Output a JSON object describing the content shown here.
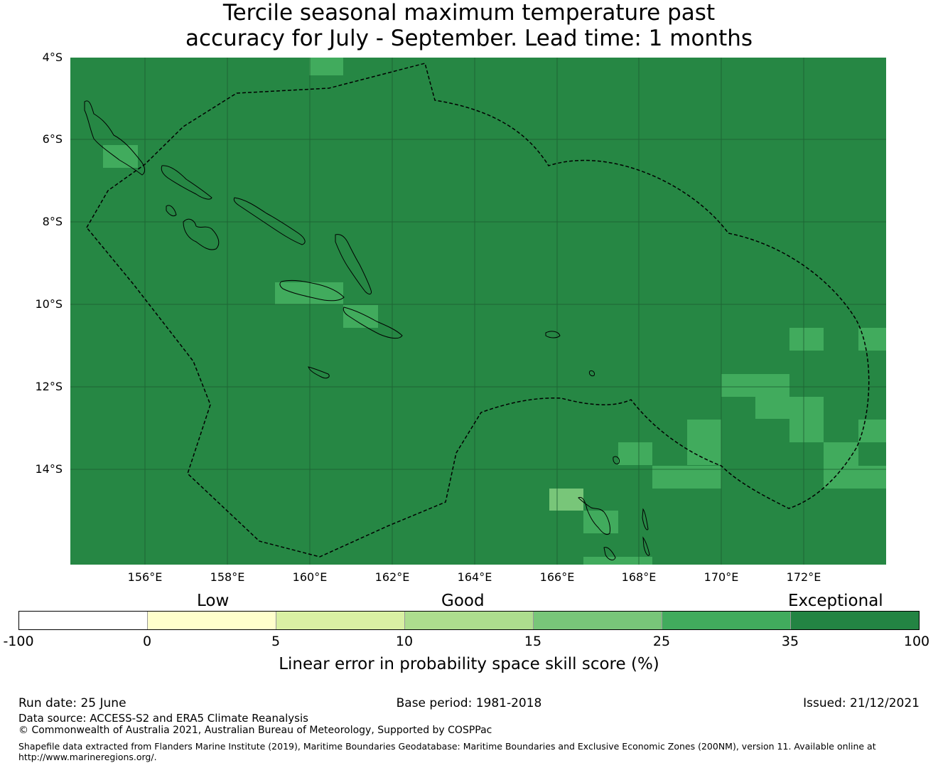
{
  "title": {
    "line1": "Tercile seasonal maximum temperature past",
    "line2": "accuracy for July - September. Lead time: 1 months"
  },
  "map": {
    "base_color": "#268744",
    "grid_color": "#1b5e31",
    "latitude_labels": [
      "4°S",
      "6°S",
      "8°S",
      "10°S",
      "12°S",
      "14°S"
    ],
    "longitude_labels": [
      "156°E",
      "158°E",
      "160°E",
      "162°E",
      "164°E",
      "166°E",
      "168°E",
      "170°E",
      "172°E"
    ]
  },
  "legend": {
    "categories": [
      "Low",
      "Good",
      "Exceptional"
    ],
    "colors": [
      "#ffffff",
      "#ffffcc",
      "#d9f0a3",
      "#addd8e",
      "#78c679",
      "#41ab5d",
      "#238443"
    ],
    "ticks": [
      "-100",
      "0",
      "5",
      "10",
      "15",
      "25",
      "35",
      "100"
    ],
    "title": "Linear error in probability space skill score (%)"
  },
  "footer": {
    "run_date": "Run date: 25 June",
    "base_period": "Base period: 1981-2018",
    "issued": "Issued: 21/12/2021",
    "data_source": "Data source: ACCESS-S2 and ERA5 Climate Reanalysis",
    "copyright": "© Commonwealth of Australia 2021, Australian Bureau of Meteorology, Supported by COSPPac",
    "shapefile_line1": "Shapefile data extracted from Flanders Marine Institute (2019), Maritime Boundaries Geodatabase: Maritime Boundaries and Exclusive Economic Zones (200NM), version 11. Available online at",
    "shapefile_line2": "http://www.marineregions.org/."
  }
}
